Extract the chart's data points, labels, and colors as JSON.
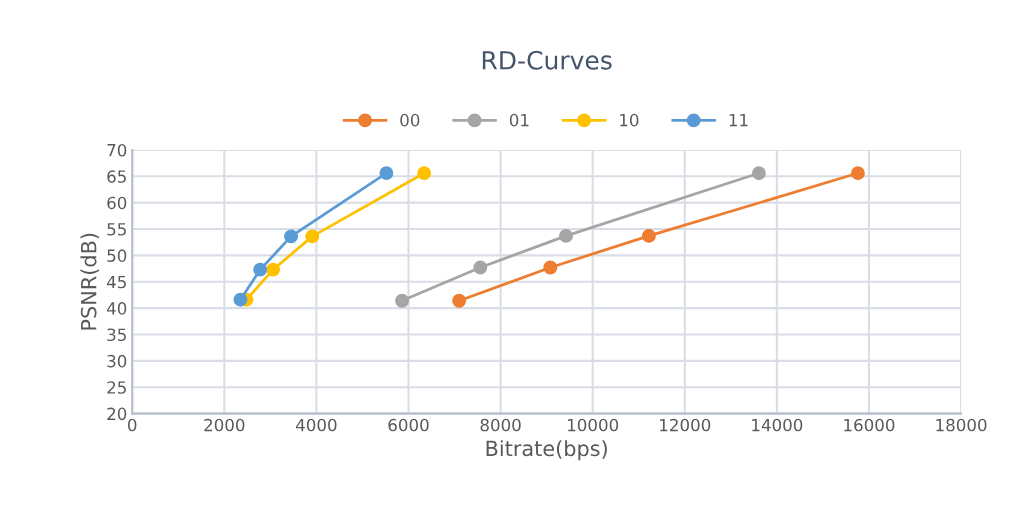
{
  "chart_data": {
    "type": "line",
    "title": "RD-Curves",
    "xlabel": "Bitrate(bps)",
    "ylabel": "PSNR(dB)",
    "series": [
      {
        "name": "00",
        "color": "#ed7d31",
        "x": [
          7100,
          9080,
          11220,
          15760
        ],
        "values": [
          41.4,
          47.7,
          53.7,
          65.6
        ]
      },
      {
        "name": "01",
        "color": "#a5a5a5",
        "x": [
          5860,
          7560,
          9420,
          13610
        ],
        "values": [
          41.4,
          47.7,
          53.7,
          65.6
        ]
      },
      {
        "name": "10",
        "color": "#ffc000",
        "x": [
          2480,
          3060,
          3910,
          6340
        ],
        "values": [
          41.6,
          47.3,
          53.6,
          65.6
        ]
      },
      {
        "name": "11",
        "color": "#5b9bd5",
        "x": [
          2350,
          2780,
          3450,
          5520
        ],
        "values": [
          41.6,
          47.3,
          53.6,
          65.6
        ]
      }
    ],
    "xlim": [
      0,
      18000
    ],
    "xticks": [
      0,
      2000,
      4000,
      6000,
      8000,
      10000,
      12000,
      14000,
      16000,
      18000
    ],
    "ylim": [
      20,
      70
    ],
    "yticks": [
      20,
      25,
      30,
      35,
      40,
      45,
      50,
      55,
      60,
      65,
      70
    ],
    "grid": true,
    "legend": "top",
    "marker": "circle",
    "line_style": "solid"
  }
}
